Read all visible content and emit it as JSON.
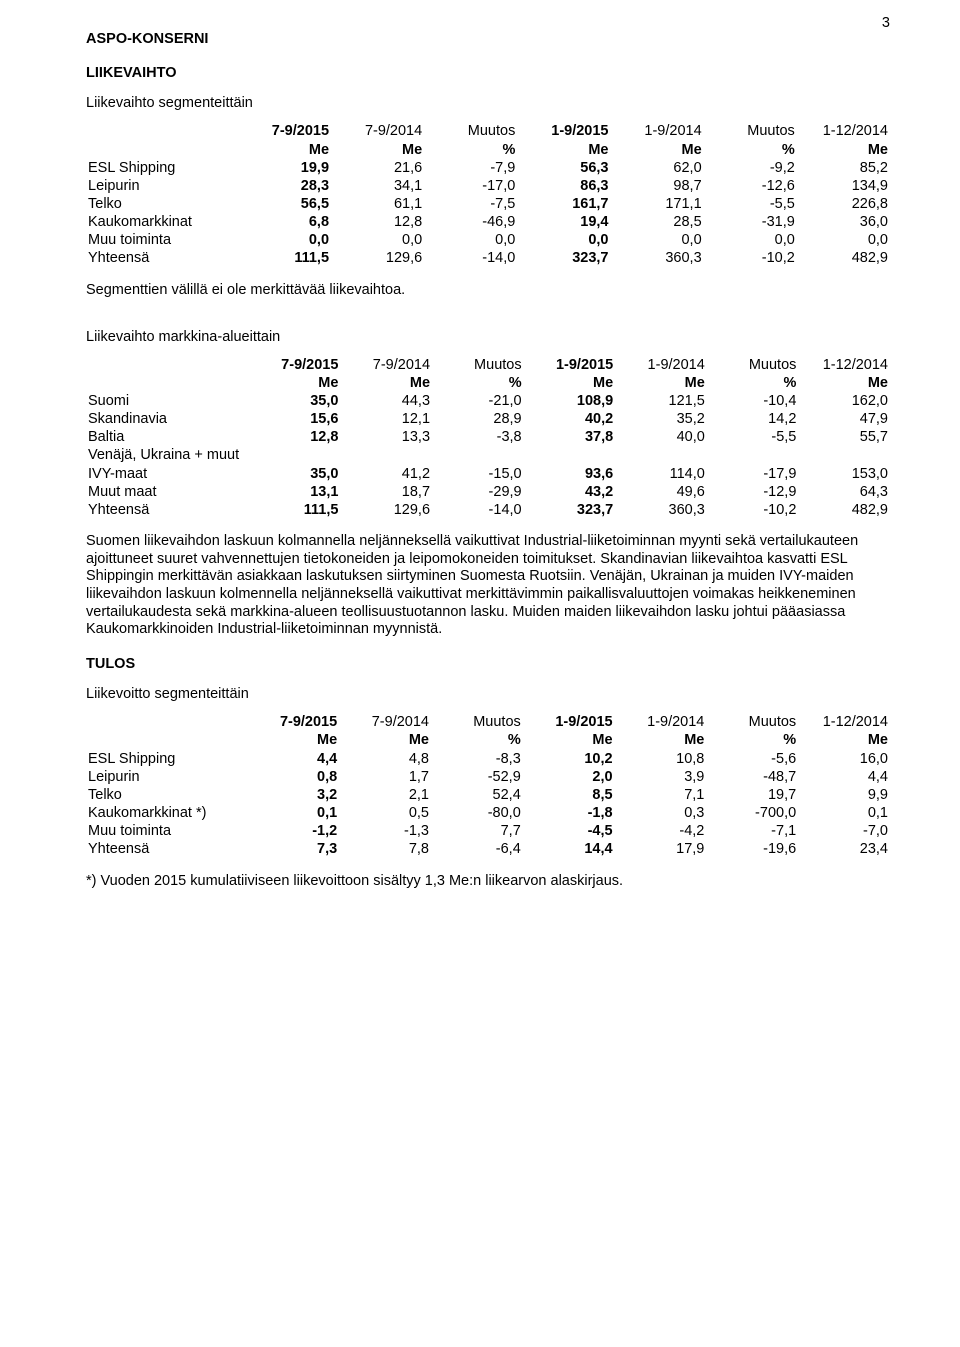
{
  "page_number": "3",
  "h_company": "ASPO-KONSERNI",
  "h_liikevaihto": "LIIKEVAIHTO",
  "h_seg_title": "Liikevaihto segmenteittäin",
  "h_seg_note": "Segmenttien välillä ei ole merkittävää liikevaihtoa.",
  "h_market_title": "Liikevaihto markkina-alueittain",
  "paragraph": "Suomen liikevaihdon laskuun kolmannella neljänneksellä vaikuttivat Industrial-liiketoiminnan myynti sekä vertailukauteen ajoittuneet suuret vahvennettujen tietokoneiden ja leipomokoneiden toimitukset. Skandinavian liikevaihtoa kasvatti ESL Shippingin merkittävän asiakkaan laskutuksen siirtyminen Suomesta Ruotsiin. Venäjän, Ukrainan ja muiden IVY-maiden liikevaihdon laskuun kolmennella neljänneksellä vaikuttivat merkittävimmin paikallisvaluuttojen voimakas heikkeneminen vertailukaudesta sekä markkina-alueen teollisuustuotannon lasku. Muiden maiden liikevaihdon lasku johtui pääasiassa Kaukomarkkinoiden Industrial-liiketoiminnan myynnistä.",
  "h_tulos": "TULOS",
  "h_profit_title": "Liikevoitto segmenteittäin",
  "footnote": "*) Vuoden 2015 kumulatiiviseen liikevoittoon sisältyy 1,3 Me:n liikearvon alaskirjaus.",
  "header_periods": [
    "7-9/2015",
    "7-9/2014",
    "Muutos",
    "1-9/2015",
    "1-9/2014",
    "Muutos",
    "1-12/2014"
  ],
  "header_units": [
    "Me",
    "Me",
    "%",
    "Me",
    "Me",
    "%",
    "Me"
  ],
  "t1": {
    "rows": [
      {
        "label": "ESL Shipping",
        "v": [
          "19,9",
          "21,6",
          "-7,9",
          "56,3",
          "62,0",
          "-9,2",
          "85,2"
        ],
        "bold1": true,
        "bold4": true
      },
      {
        "label": "Leipurin",
        "v": [
          "28,3",
          "34,1",
          "-17,0",
          "86,3",
          "98,7",
          "-12,6",
          "134,9"
        ],
        "bold1": true,
        "bold4": true
      },
      {
        "label": "Telko",
        "v": [
          "56,5",
          "61,1",
          "-7,5",
          "161,7",
          "171,1",
          "-5,5",
          "226,8"
        ],
        "bold1": true,
        "bold4": true
      },
      {
        "label": "Kaukomarkkinat",
        "v": [
          "6,8",
          "12,8",
          "-46,9",
          "19,4",
          "28,5",
          "-31,9",
          "36,0"
        ],
        "bold1": true,
        "bold4": true
      },
      {
        "label": "Muu toiminta",
        "v": [
          "0,0",
          "0,0",
          "0,0",
          "0,0",
          "0,0",
          "0,0",
          "0,0"
        ],
        "bold1": true,
        "bold4": true
      },
      {
        "label": "Yhteensä",
        "v": [
          "111,5",
          "129,6",
          "-14,0",
          "323,7",
          "360,3",
          "-10,2",
          "482,9"
        ],
        "bold1": true,
        "bold4": true
      }
    ]
  },
  "t2": {
    "rows": [
      {
        "label": "Suomi",
        "v": [
          "35,0",
          "44,3",
          "-21,0",
          "108,9",
          "121,5",
          "-10,4",
          "162,0"
        ],
        "bold1": true,
        "bold4": true
      },
      {
        "label": "Skandinavia",
        "v": [
          "15,6",
          "12,1",
          "28,9",
          "40,2",
          "35,2",
          "14,2",
          "47,9"
        ],
        "bold1": true,
        "bold4": true
      },
      {
        "label": "Baltia",
        "v": [
          "12,8",
          "13,3",
          "-3,8",
          "37,8",
          "40,0",
          "-5,5",
          "55,7"
        ],
        "bold1": true,
        "bold4": true
      },
      {
        "label": "Venäjä, Ukraina + muut",
        "v": [
          "",
          "",
          "",
          "",
          "",
          "",
          ""
        ],
        "noBold": true,
        "labelOnly": true
      },
      {
        "label": "IVY-maat",
        "v": [
          "35,0",
          "41,2",
          "-15,0",
          "93,6",
          "114,0",
          "-17,9",
          "153,0"
        ],
        "bold1": true,
        "bold4": true
      },
      {
        "label": "Muut maat",
        "v": [
          "13,1",
          "18,7",
          "-29,9",
          "43,2",
          "49,6",
          "-12,9",
          "64,3"
        ],
        "bold1": true,
        "bold4": true
      },
      {
        "label": "Yhteensä",
        "v": [
          "111,5",
          "129,6",
          "-14,0",
          "323,7",
          "360,3",
          "-10,2",
          "482,9"
        ],
        "bold1": true,
        "bold4": true
      }
    ]
  },
  "t3": {
    "rows": [
      {
        "label": "ESL Shipping",
        "v": [
          "4,4",
          "4,8",
          "-8,3",
          "10,2",
          "10,8",
          "-5,6",
          "16,0"
        ],
        "bold1": true,
        "bold4": true
      },
      {
        "label": "Leipurin",
        "v": [
          "0,8",
          "1,7",
          "-52,9",
          "2,0",
          "3,9",
          "-48,7",
          "4,4"
        ],
        "bold1": true,
        "bold4": true
      },
      {
        "label": "Telko",
        "v": [
          "3,2",
          "2,1",
          "52,4",
          "8,5",
          "7,1",
          "19,7",
          "9,9"
        ],
        "bold1": true,
        "bold4": true
      },
      {
        "label": "Kaukomarkkinat  *)",
        "v": [
          "0,1",
          "0,5",
          "-80,0",
          "-1,8",
          "0,3",
          "-700,0",
          "0,1"
        ],
        "bold1": true,
        "bold4": true
      },
      {
        "label": "Muu toiminta",
        "v": [
          "-1,2",
          "-1,3",
          "7,7",
          "-4,5",
          "-4,2",
          "-7,1",
          "-7,0"
        ],
        "bold1": true,
        "bold4": true
      },
      {
        "label": "Yhteensä",
        "v": [
          "7,3",
          "7,8",
          "-6,4",
          "14,4",
          "17,9",
          "-19,6",
          "23,4"
        ],
        "bold1": true,
        "bold4": true
      }
    ]
  },
  "header_bold_cols": [
    0,
    3
  ]
}
